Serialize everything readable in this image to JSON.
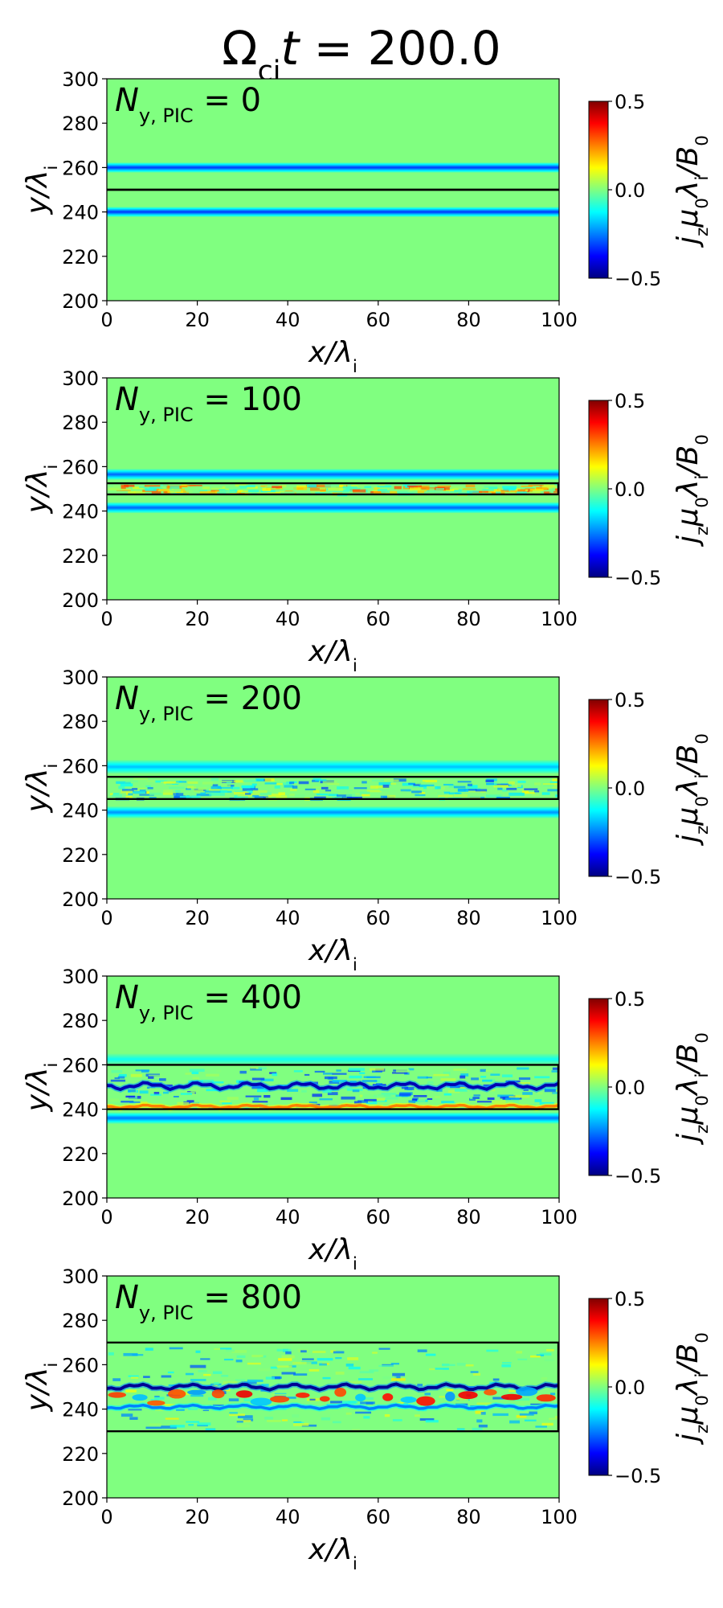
{
  "figure": {
    "suptitle": {
      "prefix": "Ω",
      "sub": "ci",
      "var": "t",
      "rest": " = 200.0"
    }
  },
  "colorscale": {
    "name": "jet",
    "colors": [
      "#000080",
      "#0000ff",
      "#0080ff",
      "#00ffff",
      "#80ff80",
      "#ffff00",
      "#ff8000",
      "#ff0000",
      "#800000"
    ],
    "range": [
      -0.5,
      0.5
    ],
    "ticks": [
      "0.5",
      "0.0",
      "−0.5"
    ],
    "label": {
      "main": "j",
      "sub1": "z",
      "mid": "μ",
      "sub2": "0",
      "mid2": "λ",
      "sub3": "i",
      "end": "/B",
      "sub4": "0"
    }
  },
  "axes": {
    "xlabel": {
      "main": "x/λ",
      "sub": "i"
    },
    "ylabel": {
      "main": "y/λ",
      "sub": "i"
    },
    "xticks": [
      "0",
      "20",
      "40",
      "60",
      "80",
      "100"
    ],
    "yticks": [
      "300",
      "280",
      "260",
      "240",
      "220",
      "200"
    ]
  },
  "chart_data": [
    {
      "type": "heatmap",
      "label": {
        "var": "N",
        "sub": "y, PIC",
        "rest": " = 0"
      },
      "xlim": [
        0,
        100
      ],
      "ylim": [
        200,
        300
      ],
      "box_y": [
        250,
        250
      ],
      "features": [
        {
          "kind": "band",
          "y": 260,
          "value": -0.35,
          "width": 2.2
        },
        {
          "kind": "band",
          "y": 240,
          "value": -0.35,
          "width": 2.2
        }
      ]
    },
    {
      "type": "heatmap",
      "label": {
        "var": "N",
        "sub": "y, PIC",
        "rest": " = 100"
      },
      "xlim": [
        0,
        100
      ],
      "ylim": [
        200,
        300
      ],
      "box_y": [
        247.5,
        252.5
      ],
      "features": [
        {
          "kind": "band",
          "y": 256.5,
          "value": -0.3,
          "width": 2.4
        },
        {
          "kind": "band",
          "y": 241.5,
          "value": -0.3,
          "width": 2.4
        },
        {
          "kind": "noise",
          "y0": 248,
          "y1": 252,
          "value": 0.1
        }
      ]
    },
    {
      "type": "heatmap",
      "label": {
        "var": "N",
        "sub": "y, PIC",
        "rest": " = 200"
      },
      "xlim": [
        0,
        100
      ],
      "ylim": [
        200,
        300
      ],
      "box_y": [
        245,
        255
      ],
      "features": [
        {
          "kind": "band",
          "y": 259.5,
          "value": -0.2,
          "width": 3.0
        },
        {
          "kind": "band",
          "y": 239,
          "value": -0.25,
          "width": 2.6
        },
        {
          "kind": "noise",
          "y0": 245.5,
          "y1": 254.5,
          "value": -0.1
        }
      ]
    },
    {
      "type": "heatmap",
      "label": {
        "var": "N",
        "sub": "y, PIC",
        "rest": " = 400"
      },
      "xlim": [
        0,
        100
      ],
      "ylim": [
        200,
        300
      ],
      "box_y": [
        240,
        260
      ],
      "features": [
        {
          "kind": "band",
          "y": 262.5,
          "value": -0.12,
          "width": 2.5
        },
        {
          "kind": "band",
          "y": 236,
          "value": -0.28,
          "width": 2.5
        },
        {
          "kind": "noise",
          "y0": 241,
          "y1": 259,
          "value": -0.15
        },
        {
          "kind": "wavy",
          "y": 250.5,
          "amp": 1.1,
          "value": -0.45,
          "width": 1.0
        },
        {
          "kind": "wavy",
          "y": 241.2,
          "amp": 0.5,
          "value": 0.25,
          "width": 0.9
        }
      ]
    },
    {
      "type": "heatmap",
      "label": {
        "var": "N",
        "sub": "y, PIC",
        "rest": " = 800"
      },
      "xlim": [
        0,
        100
      ],
      "ylim": [
        200,
        300
      ],
      "box_y": [
        230,
        270
      ],
      "features": [
        {
          "kind": "noise",
          "y0": 231,
          "y1": 268,
          "value": -0.08
        },
        {
          "kind": "wavy",
          "y": 250,
          "amp": 0.9,
          "value": -0.48,
          "width": 1.0
        },
        {
          "kind": "wavy",
          "y": 241,
          "amp": 0.6,
          "value": -0.25,
          "width": 0.9
        },
        {
          "kind": "blobs",
          "y0": 242.5,
          "y1": 248.5,
          "value": 0.4
        }
      ]
    }
  ]
}
